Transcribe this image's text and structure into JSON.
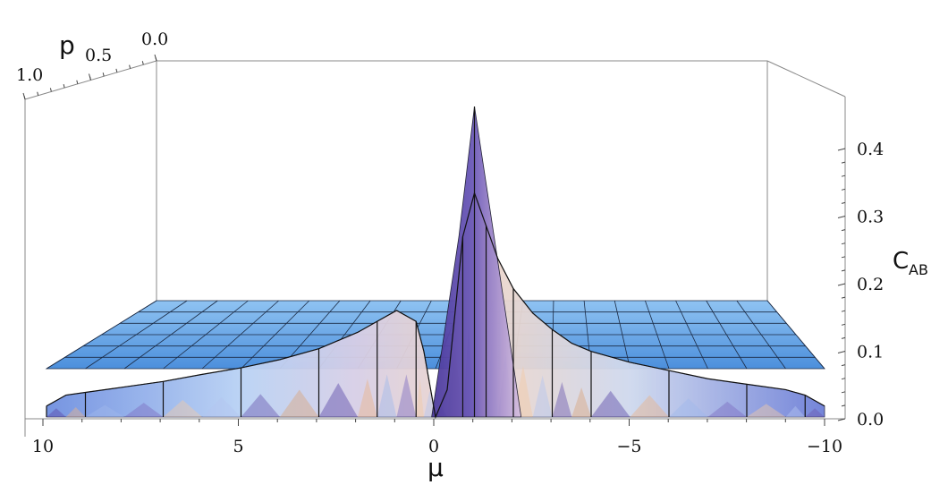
{
  "chart_data": {
    "type": "surface3d",
    "x_axis": {
      "label": "μ",
      "ticks": [
        10,
        5,
        0,
        -5,
        -10
      ],
      "tick_labels": [
        "10",
        "5",
        "0",
        "−5",
        "−10"
      ],
      "range": [
        10,
        -10
      ]
    },
    "y_axis": {
      "label": "p",
      "ticks": [
        1.0,
        0.5,
        0.0
      ],
      "tick_labels": [
        "1.0",
        "0.5",
        "0.0"
      ],
      "range": [
        0,
        1
      ]
    },
    "z_axis": {
      "label_main": "C",
      "label_sub": "AB",
      "ticks": [
        0.0,
        0.1,
        0.2,
        0.3,
        0.4
      ],
      "tick_labels": [
        "0.0",
        "0.1",
        "0.2",
        "0.3",
        "0.4"
      ],
      "range": [
        0,
        0.47
      ]
    },
    "front_profile": {
      "mu": [
        10,
        9.5,
        9,
        8,
        7,
        6,
        5,
        4,
        3,
        2,
        1.5,
        1,
        0.5,
        0.3,
        0,
        -0.3,
        -0.7,
        -1,
        -1.3,
        -1.6,
        -2,
        -2.5,
        -3,
        -3.5,
        -4,
        -5,
        -6,
        -7,
        -8,
        -9,
        -9.5,
        -10
      ],
      "c_ab": [
        0.02,
        0.04,
        0.045,
        0.055,
        0.065,
        0.078,
        0.09,
        0.105,
        0.125,
        0.155,
        0.175,
        0.195,
        0.175,
        0.12,
        0.0,
        0.05,
        0.33,
        0.41,
        0.35,
        0.29,
        0.235,
        0.19,
        0.16,
        0.135,
        0.12,
        0.1,
        0.085,
        0.07,
        0.06,
        0.05,
        0.04,
        0.02
      ]
    },
    "back_plateau_c_ab": 0.12,
    "peak": {
      "mu": -1,
      "c_ab": 0.47
    },
    "grid": true
  }
}
